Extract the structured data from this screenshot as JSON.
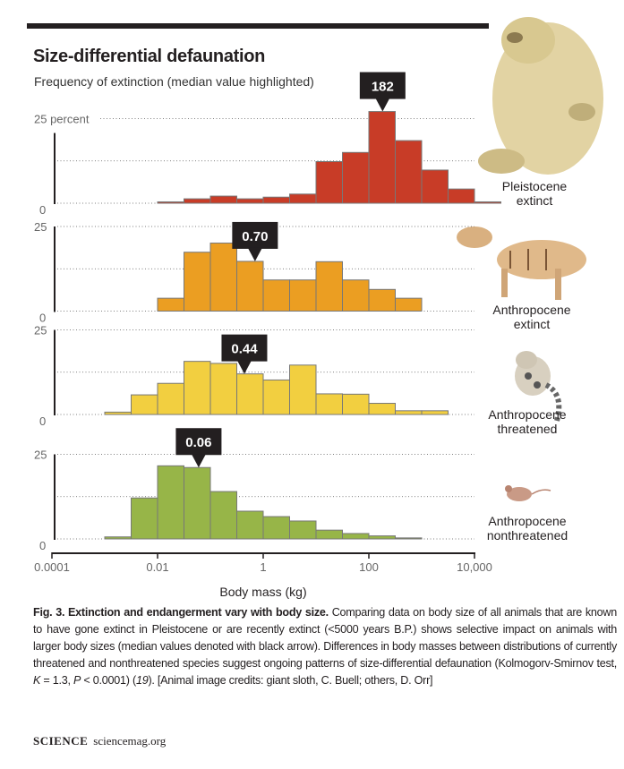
{
  "title": "Size-differential defaunation",
  "subtitle": "Frequency of extinction (median value highlighted)",
  "chart_data": {
    "type": "bar",
    "subtype": "histogram",
    "xlabel": "Body mass (kg)",
    "xscale": "log",
    "xlim": [
      0.0001,
      10000
    ],
    "xticks": [
      "0.0001",
      "0.01",
      "1",
      "100",
      "10,000"
    ],
    "xtick_values": [
      0.0001,
      0.01,
      1,
      100,
      10000
    ],
    "bin_width_log10": 0.5,
    "ylim": [
      0,
      25
    ],
    "grid": "dotted horizontal",
    "panels": [
      {
        "name": "Pleistocene extinct",
        "label_lines": [
          "Pleistocene",
          "extinct"
        ],
        "color": "#c83c27",
        "ytick_top": "25 percent",
        "ytick_bottom": "0",
        "first_bin_start": 0.01,
        "values": [
          0.4,
          1.3,
          2.1,
          1.3,
          1.8,
          2.7,
          12.3,
          15.0,
          27.1,
          18.5,
          9.8,
          4.2,
          0.4
        ],
        "median": 182,
        "median_label": "182"
      },
      {
        "name": "Anthropocene extinct",
        "label_lines": [
          "Anthropocene",
          "extinct"
        ],
        "color": "#eb9e22",
        "ytick_top": "25",
        "ytick_bottom": "0",
        "first_bin_start": 0.01,
        "values": [
          3.8,
          17.4,
          20.1,
          14.7,
          9.2,
          9.2,
          14.6,
          9.2,
          6.4,
          3.8
        ],
        "median": 0.7,
        "median_label": "0.70"
      },
      {
        "name": "Anthropocene threatened",
        "label_lines": [
          "Anthropocene",
          "threatened"
        ],
        "color": "#f2cf40",
        "ytick_top": "25",
        "ytick_bottom": "0",
        "first_bin_start": 0.001,
        "values": [
          0.7,
          5.8,
          9.2,
          15.7,
          15.1,
          12.0,
          10.2,
          14.6,
          6.1,
          6.0,
          3.3,
          1.1,
          1.1
        ],
        "median": 0.44,
        "median_label": "0.44"
      },
      {
        "name": "Anthropocene nonthreatened",
        "label_lines": [
          "Anthropocene",
          "nonthreatened"
        ],
        "color": "#97b548",
        "ytick_top": "25",
        "ytick_bottom": "0",
        "first_bin_start": 0.001,
        "values": [
          0.6,
          12.1,
          21.6,
          21.1,
          14.0,
          8.2,
          6.6,
          5.3,
          2.6,
          1.6,
          0.9,
          0.3
        ],
        "median": 0.06,
        "median_label": "0.06"
      }
    ]
  },
  "caption": {
    "bold": "Fig. 3. Extinction and endangerment vary with body size.",
    "text1": " Comparing data on body size of all animals that are known to have gone extinct in Pleistocene or are recently extinct (<5000 years B.P.) shows selective impact on animals with larger body sizes (median values denoted with black arrow). Differences in body masses between distributions of currently threatened and nonthreatened species suggest ongoing patterns of size-differential defaunation (Kolmogorv-Smirnov test, ",
    "k": "K",
    "text2": " = 1.3, ",
    "p": "P",
    "text3": " < 0.0001) (",
    "ref": "19",
    "text4": "). [Animal image credits: giant sloth, C. Buell; others, D. Orr]"
  },
  "footer": {
    "journal": "SCIENCE",
    "site": "sciencemag.org"
  },
  "icons": [
    "giant-sloth-illustration",
    "thylacine-illustration",
    "clouded-leopard-illustration",
    "mouse-illustration"
  ]
}
